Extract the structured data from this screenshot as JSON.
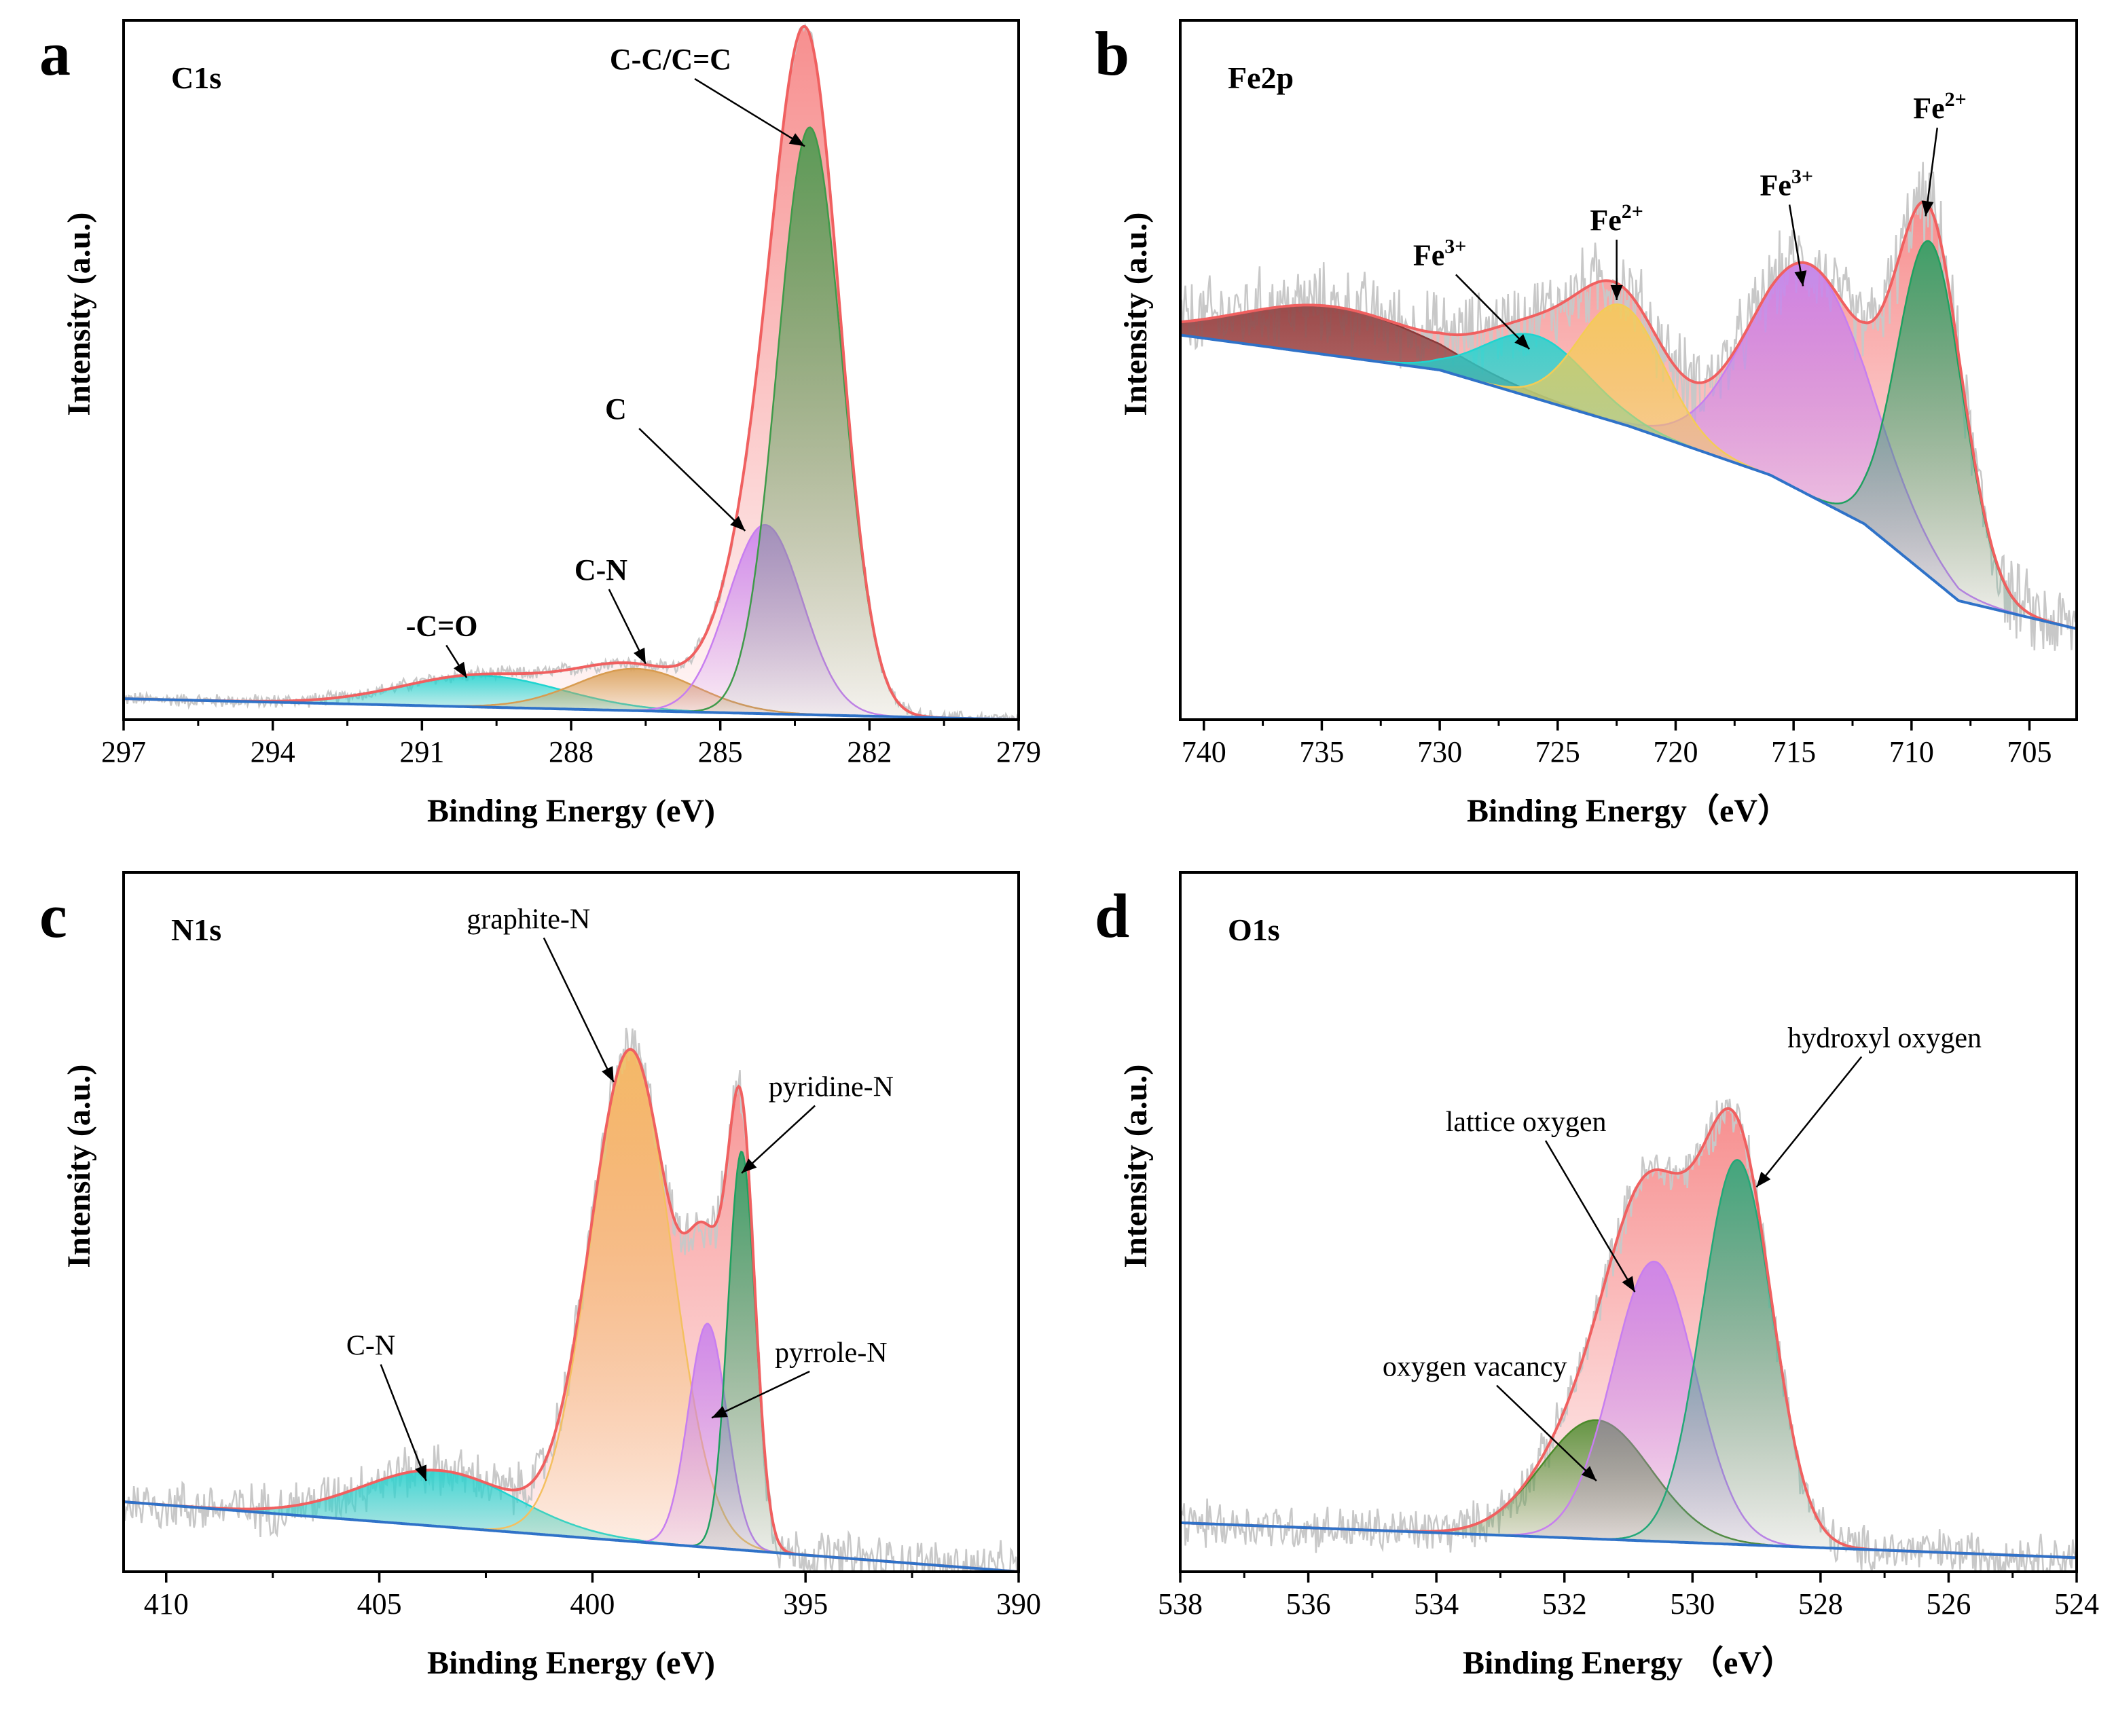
{
  "colors": {
    "raw": "#c8c8c8",
    "envelope": "#f06060",
    "envelope_fill": "#f46a6a",
    "baseline": "#2f72c8",
    "cyan": "#1fd4d0",
    "orange": "#e6b070",
    "purple": "#c77ef0",
    "green": "#1fa060",
    "teal_green": "#23a878",
    "yellow": "#f4cc55",
    "maroon": "#8a3a3a",
    "olive": "#6a8a2a",
    "olive_fill": "#3f8a3a"
  },
  "chart_data": [
    {
      "panel": "a",
      "type": "line",
      "title": "C1s",
      "xlabel": "Binding Energy (eV)",
      "ylabel": "Intensity (a.u.)",
      "xlim": [
        297,
        279
      ],
      "xticks": [
        297,
        294,
        291,
        288,
        285,
        282,
        279
      ],
      "ylim": [
        0,
        1
      ],
      "baseline": [
        [
          297,
          0.03
        ],
        [
          279,
          0.0
        ]
      ],
      "peaks": [
        {
          "name": "C-C/C=C",
          "center": 283.2,
          "height": 0.84,
          "width": 0.65,
          "color": "#3f9a4a",
          "label_pos": [
            286,
            0.93
          ],
          "arrow_to": [
            283.3,
            0.82
          ]
        },
        {
          "name": "C",
          "center": 284.1,
          "height": 0.27,
          "width": 0.75,
          "color": "#c77ef0",
          "label_pos": [
            287.1,
            0.43
          ],
          "arrow_to": [
            284.5,
            0.27
          ]
        },
        {
          "name": "C-N",
          "center": 286.7,
          "height": 0.06,
          "width": 1.2,
          "color": "#d89c50",
          "label_pos": [
            287.4,
            0.2
          ],
          "arrow_to": [
            286.5,
            0.08
          ]
        },
        {
          "name": "-C=O",
          "center": 289.8,
          "height": 0.045,
          "width": 1.6,
          "color": "#1fd4d0",
          "label_pos": [
            290.6,
            0.12
          ],
          "arrow_to": [
            290.1,
            0.06
          ]
        }
      ]
    },
    {
      "panel": "b",
      "type": "line",
      "title": "Fe2p",
      "xlabel": "Binding Energy（eV）",
      "ylabel": "Intensity (a.u.)",
      "xlim": [
        741,
        703
      ],
      "xticks": [
        740,
        735,
        730,
        725,
        720,
        715,
        710,
        705
      ],
      "ylim": [
        0,
        1
      ],
      "baseline": [
        [
          741,
          0.55
        ],
        [
          730,
          0.5
        ],
        [
          722,
          0.42
        ],
        [
          716,
          0.35
        ],
        [
          712,
          0.28
        ],
        [
          708,
          0.17
        ],
        [
          703,
          0.13
        ]
      ],
      "peaks": [
        {
          "name": "Fe2+",
          "sup": "2+",
          "center": 709.2,
          "height": 0.48,
          "width": 1.4,
          "color": "#1fa060",
          "label_pos": [
            708.8,
            0.86
          ],
          "arrow_to": [
            709.4,
            0.72
          ]
        },
        {
          "name": "Fe3+",
          "sup": "3+",
          "center": 714.3,
          "height": 0.33,
          "width": 2.6,
          "color": "#c77ef0",
          "label_pos": [
            715.3,
            0.75
          ],
          "arrow_to": [
            714.6,
            0.62
          ]
        },
        {
          "name": "Fe2+",
          "sup": "2+",
          "center": 722.3,
          "height": 0.17,
          "width": 1.8,
          "color": "#f4cc55",
          "label_pos": [
            722.5,
            0.7
          ],
          "arrow_to": [
            722.5,
            0.6
          ]
        },
        {
          "name": "Fe3+",
          "sup": "3+",
          "center": 725.9,
          "height": 0.09,
          "width": 2.2,
          "color": "#1fd4d0",
          "label_pos": [
            730,
            0.65
          ],
          "arrow_to": [
            726.2,
            0.53
          ]
        },
        {
          "name": "",
          "center": 734.5,
          "height": 0.07,
          "width": 4.0,
          "color": "#8a3a3a"
        }
      ]
    },
    {
      "panel": "c",
      "type": "line",
      "title": "N1s",
      "xlabel": "Binding Energy (eV)",
      "ylabel": "Intensity (a.u.)",
      "xlim": [
        411,
        390
      ],
      "xticks": [
        410,
        405,
        400,
        395,
        390
      ],
      "ylim": [
        0,
        1
      ],
      "baseline": [
        [
          411,
          0.1
        ],
        [
          390,
          0.0
        ]
      ],
      "peaks": [
        {
          "name": "graphite-N",
          "center": 399.1,
          "height": 0.7,
          "width": 0.95,
          "color": "#f4c060",
          "label_pos": [
            401.5,
            0.92
          ],
          "arrow_to": [
            399.5,
            0.7
          ]
        },
        {
          "name": "pyridine-N",
          "center": 396.5,
          "height": 0.57,
          "width": 0.32,
          "color": "#1fa060",
          "label_pos": [
            394.4,
            0.68
          ],
          "arrow_to": [
            396.5,
            0.57
          ]
        },
        {
          "name": "pyrrole-N",
          "center": 397.3,
          "height": 0.32,
          "width": 0.45,
          "color": "#c77ef0",
          "label_pos": [
            394.4,
            0.3
          ],
          "arrow_to": [
            397.2,
            0.22
          ]
        },
        {
          "name": "C-N",
          "center": 403.6,
          "height": 0.08,
          "width": 1.8,
          "color": "#1fd4d0",
          "label_pos": [
            405.2,
            0.31
          ],
          "arrow_to": [
            403.9,
            0.13
          ]
        }
      ]
    },
    {
      "panel": "d",
      "type": "line",
      "title": "O1s",
      "xlabel": "Binding Energy （eV）",
      "ylabel": "Intensity (a.u.)",
      "xlim": [
        538,
        524
      ],
      "xticks": [
        538,
        536,
        534,
        532,
        530,
        528,
        526,
        524
      ],
      "ylim": [
        0,
        1
      ],
      "baseline": [
        [
          538,
          0.07
        ],
        [
          524,
          0.02
        ]
      ],
      "peaks": [
        {
          "name": "hydroxyl oxygen",
          "center": 529.3,
          "height": 0.55,
          "width": 0.55,
          "color": "#23a878",
          "label_pos": [
            527,
            0.75
          ],
          "arrow_to": [
            529.0,
            0.55
          ]
        },
        {
          "name": "lattice oxygen",
          "center": 530.6,
          "height": 0.4,
          "width": 0.65,
          "color": "#c77ef0",
          "label_pos": [
            532.6,
            0.63
          ],
          "arrow_to": [
            530.9,
            0.4
          ]
        },
        {
          "name": "oxygen vacancy",
          "center": 531.5,
          "height": 0.17,
          "width": 0.85,
          "color": "#4a8a2a",
          "label_pos": [
            533.4,
            0.28
          ],
          "arrow_to": [
            531.5,
            0.13
          ]
        }
      ]
    }
  ]
}
